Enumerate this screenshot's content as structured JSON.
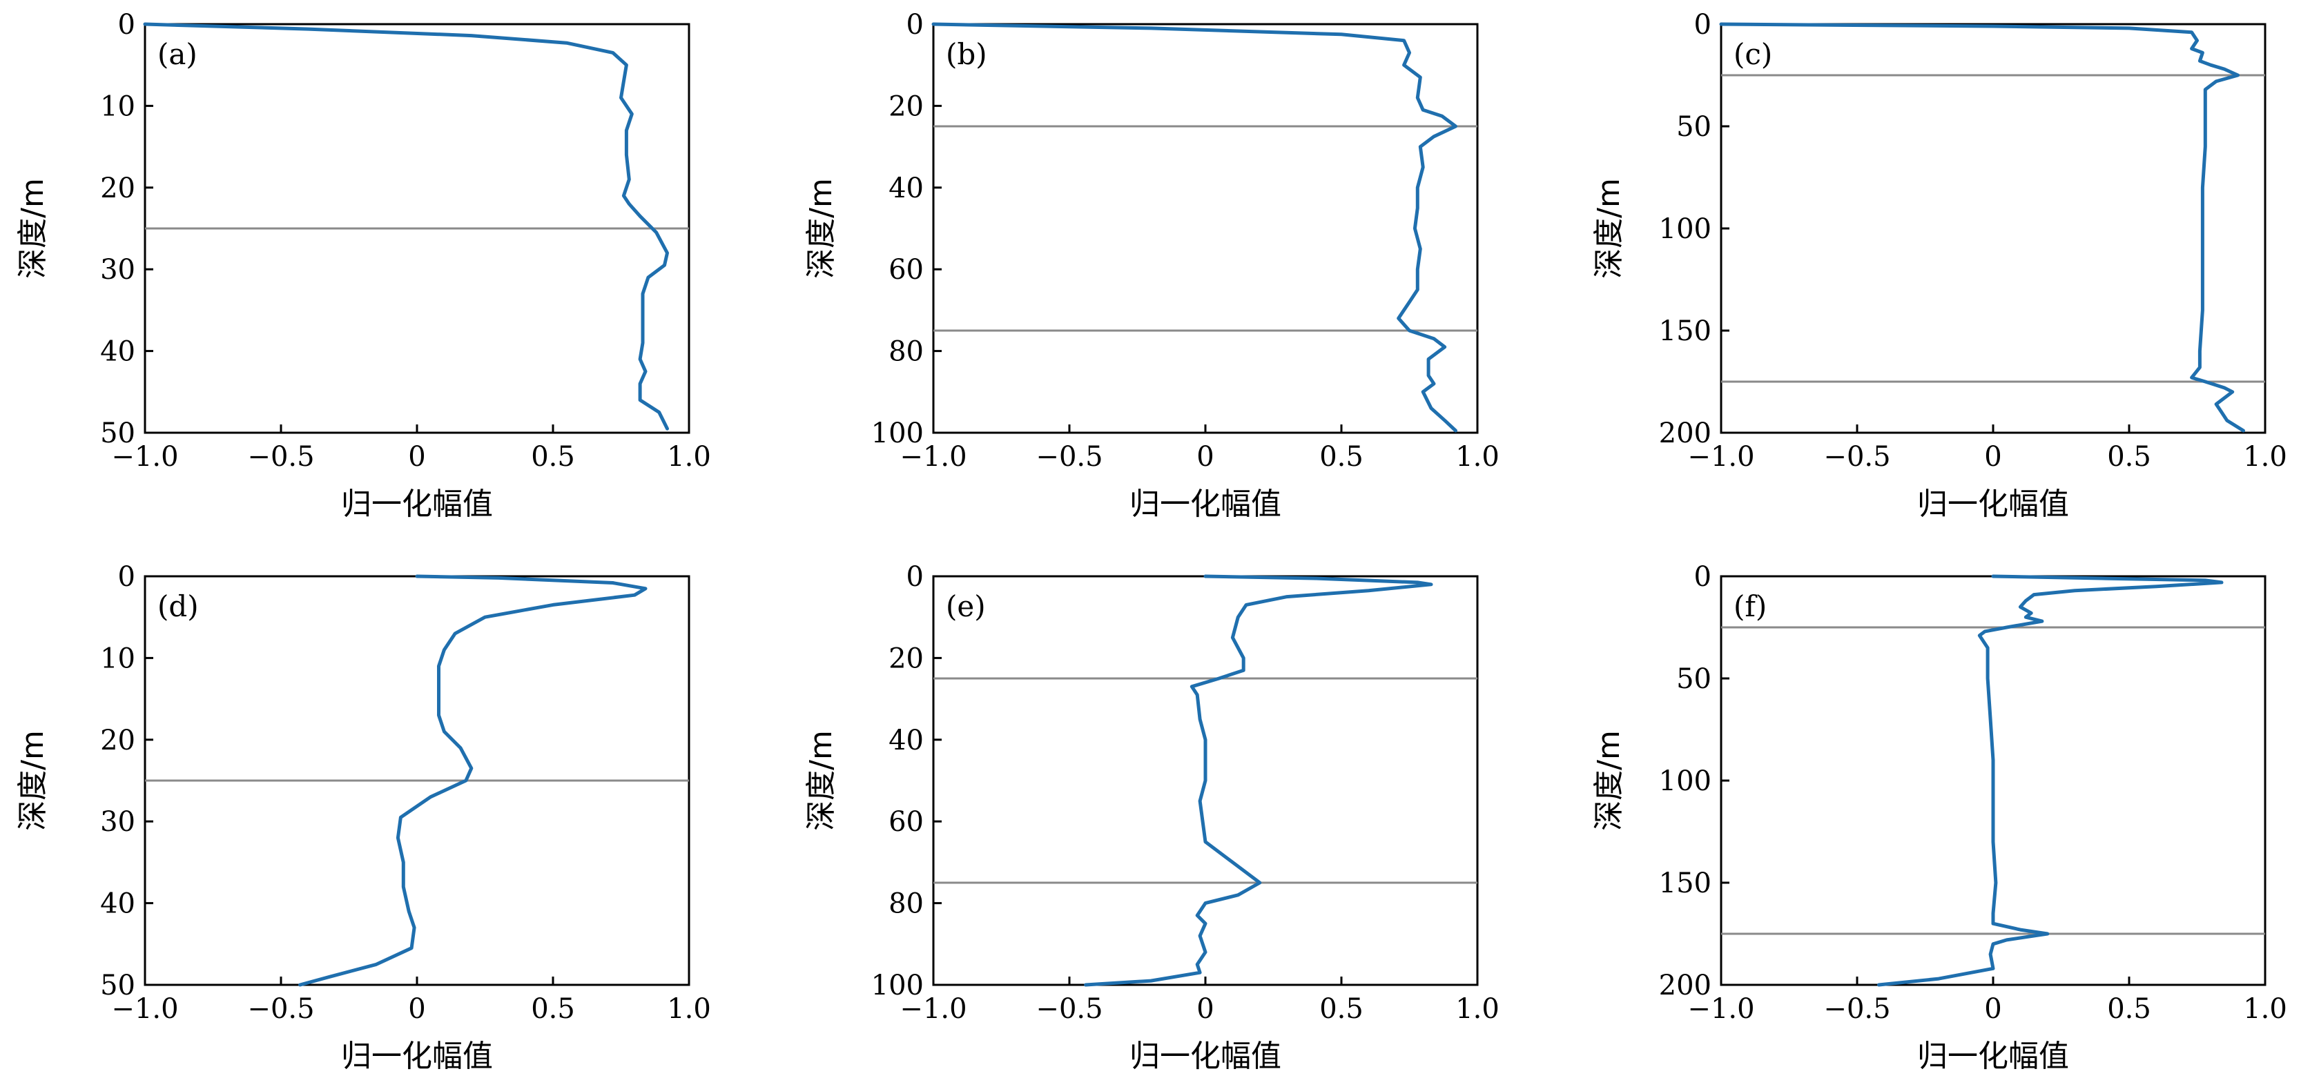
{
  "figure": {
    "colors": {
      "curve": "#1f6fae",
      "boundary_line": "#8a8a8a",
      "axes": "#000000"
    }
  },
  "chart_data": [
    {
      "panel": "(a)",
      "type": "line",
      "xlabel": "归一化幅值",
      "ylabel": "深度/m",
      "xlim": [
        -1.0,
        1.0
      ],
      "ylim": [
        0,
        50
      ],
      "y_inverted": true,
      "xticks": [
        "−1.0",
        "−0.5",
        "0",
        "0.5",
        "1.0"
      ],
      "xtick_values": [
        -1,
        -0.5,
        0,
        0.5,
        1
      ],
      "yticks": [
        "0",
        "10",
        "20",
        "30",
        "40",
        "50"
      ],
      "ytick_values": [
        0,
        10,
        20,
        30,
        40,
        50
      ],
      "hlines": [
        25
      ],
      "series": [
        {
          "x": [
            -1.0,
            -0.4,
            0.2,
            0.55,
            0.72,
            0.77,
            0.76,
            0.75,
            0.79,
            0.77,
            0.77,
            0.78,
            0.76,
            0.78,
            0.82,
            0.88,
            0.92,
            0.91,
            0.85,
            0.83,
            0.83,
            0.83,
            0.82,
            0.84,
            0.82,
            0.82,
            0.89,
            0.92
          ],
          "y": [
            0,
            0.6,
            1.4,
            2.3,
            3.5,
            5,
            7,
            9,
            11,
            13,
            16,
            19,
            21,
            22,
            23.5,
            25.5,
            28,
            29.5,
            31,
            33,
            36,
            39,
            41,
            42.5,
            44,
            46,
            47.5,
            49.5
          ]
        }
      ]
    },
    {
      "panel": "(b)",
      "type": "line",
      "xlabel": "归一化幅值",
      "ylabel": "深度/m",
      "xlim": [
        -1.0,
        1.0
      ],
      "ylim": [
        0,
        100
      ],
      "y_inverted": true,
      "xticks": [
        "−1.0",
        "−0.5",
        "0",
        "0.5",
        "1.0"
      ],
      "xtick_values": [
        -1,
        -0.5,
        0,
        0.5,
        1
      ],
      "yticks": [
        "0",
        "20",
        "40",
        "60",
        "80",
        "100"
      ],
      "ytick_values": [
        0,
        20,
        40,
        60,
        80,
        100
      ],
      "hlines": [
        25,
        75
      ],
      "series": [
        {
          "x": [
            -1.0,
            -0.2,
            0.5,
            0.73,
            0.75,
            0.73,
            0.79,
            0.78,
            0.8,
            0.87,
            0.92,
            0.84,
            0.79,
            0.8,
            0.78,
            0.78,
            0.77,
            0.79,
            0.78,
            0.78,
            0.75,
            0.71,
            0.75,
            0.84,
            0.88,
            0.82,
            0.82,
            0.84,
            0.8,
            0.83,
            0.88,
            0.92
          ],
          "y": [
            0,
            1,
            2.5,
            4,
            7,
            10,
            13,
            18,
            21,
            22.5,
            25,
            27.5,
            30,
            35,
            40,
            45,
            50,
            55,
            60,
            65,
            68,
            72,
            75,
            77,
            79,
            82,
            86,
            88,
            90,
            94,
            97,
            99.5
          ]
        }
      ]
    },
    {
      "panel": "(c)",
      "type": "line",
      "xlabel": "归一化幅值",
      "ylabel": "深度/m",
      "xlim": [
        -1.0,
        1.0
      ],
      "ylim": [
        0,
        200
      ],
      "y_inverted": true,
      "xticks": [
        "−1.0",
        "−0.5",
        "0",
        "0.5",
        "1.0"
      ],
      "xtick_values": [
        -1,
        -0.5,
        0,
        0.5,
        1
      ],
      "yticks": [
        "0",
        "50",
        "100",
        "150",
        "200"
      ],
      "ytick_values": [
        0,
        50,
        100,
        150,
        200
      ],
      "hlines": [
        25,
        175
      ],
      "series": [
        {
          "x": [
            -1.0,
            0.0,
            0.5,
            0.73,
            0.75,
            0.73,
            0.77,
            0.76,
            0.8,
            0.85,
            0.9,
            0.82,
            0.78,
            0.78,
            0.78,
            0.77,
            0.77,
            0.77,
            0.77,
            0.76,
            0.76,
            0.73,
            0.78,
            0.85,
            0.88,
            0.82,
            0.84,
            0.86,
            0.92
          ],
          "y": [
            0,
            1,
            2,
            4,
            8,
            12,
            14,
            18,
            20,
            22,
            25,
            28,
            32,
            40,
            60,
            80,
            100,
            120,
            140,
            160,
            168,
            173,
            175,
            178,
            180,
            186,
            190,
            194,
            199
          ]
        }
      ]
    },
    {
      "panel": "(d)",
      "type": "line",
      "xlabel": "归一化幅值",
      "ylabel": "深度/m",
      "xlim": [
        -1.0,
        1.0
      ],
      "ylim": [
        0,
        50
      ],
      "y_inverted": true,
      "xticks": [
        "−1.0",
        "−0.5",
        "0",
        "0.5",
        "1.0"
      ],
      "xtick_values": [
        -1,
        -0.5,
        0,
        0.5,
        1
      ],
      "yticks": [
        "0",
        "10",
        "20",
        "30",
        "40",
        "50"
      ],
      "ytick_values": [
        0,
        10,
        20,
        30,
        40,
        50
      ],
      "hlines": [
        25
      ],
      "series": [
        {
          "x": [
            0.0,
            0.3,
            0.72,
            0.84,
            0.8,
            0.5,
            0.25,
            0.14,
            0.1,
            0.08,
            0.08,
            0.08,
            0.1,
            0.16,
            0.2,
            0.18,
            0.05,
            -0.06,
            -0.07,
            -0.05,
            -0.05,
            -0.03,
            -0.01,
            -0.02,
            -0.15,
            -0.32,
            -0.43
          ],
          "y": [
            0,
            0.2,
            0.8,
            1.5,
            2.3,
            3.5,
            5,
            7,
            9,
            11,
            14,
            17,
            19,
            21,
            23.5,
            25,
            27,
            29.5,
            32,
            35,
            38,
            41,
            43,
            45.5,
            47.5,
            49,
            50
          ]
        }
      ]
    },
    {
      "panel": "(e)",
      "type": "line",
      "xlabel": "归一化幅值",
      "ylabel": "深度/m",
      "xlim": [
        -1.0,
        1.0
      ],
      "ylim": [
        0,
        100
      ],
      "y_inverted": true,
      "xticks": [
        "−1.0",
        "−0.5",
        "0",
        "0.5",
        "1.0"
      ],
      "xtick_values": [
        -1,
        -0.5,
        0,
        0.5,
        1
      ],
      "yticks": [
        "0",
        "20",
        "40",
        "60",
        "80",
        "100"
      ],
      "ytick_values": [
        0,
        20,
        40,
        60,
        80,
        100
      ],
      "hlines": [
        25,
        75
      ],
      "series": [
        {
          "x": [
            0.0,
            0.4,
            0.78,
            0.83,
            0.6,
            0.3,
            0.15,
            0.12,
            0.1,
            0.14,
            0.14,
            0.05,
            -0.05,
            -0.03,
            -0.02,
            0.0,
            0.0,
            0.0,
            -0.02,
            0.0,
            0.1,
            0.2,
            0.12,
            0.0,
            -0.03,
            0.0,
            -0.02,
            0.0,
            -0.03,
            -0.02,
            -0.2,
            -0.44
          ],
          "y": [
            0,
            0.5,
            1.5,
            2,
            3.5,
            5,
            7,
            10,
            15,
            20,
            23,
            25,
            27,
            29,
            35,
            40,
            45,
            50,
            55,
            65,
            70,
            75,
            78,
            80,
            83,
            85,
            88,
            92,
            95,
            97,
            99,
            100
          ]
        }
      ]
    },
    {
      "panel": "(f)",
      "type": "line",
      "xlabel": "归一化幅值",
      "ylabel": "深度/m",
      "xlim": [
        -1.0,
        1.0
      ],
      "ylim": [
        0,
        200
      ],
      "y_inverted": true,
      "xticks": [
        "−1.0",
        "−0.5",
        "0",
        "0.5",
        "1.0"
      ],
      "xtick_values": [
        -1,
        -0.5,
        0,
        0.5,
        1
      ],
      "yticks": [
        "0",
        "50",
        "100",
        "150",
        "200"
      ],
      "ytick_values": [
        0,
        50,
        100,
        150,
        200
      ],
      "hlines": [
        25,
        175
      ],
      "series": [
        {
          "x": [
            0.0,
            0.4,
            0.78,
            0.84,
            0.6,
            0.3,
            0.15,
            0.12,
            0.1,
            0.14,
            0.12,
            0.18,
            0.05,
            -0.03,
            -0.05,
            -0.02,
            -0.02,
            -0.01,
            0.0,
            0.0,
            0.0,
            0.01,
            0.0,
            0.0,
            0.1,
            0.2,
            0.05,
            0.0,
            -0.01,
            0.0,
            -0.2,
            -0.42
          ],
          "y": [
            0,
            1,
            2,
            3,
            5,
            7,
            9,
            12,
            15,
            18,
            20,
            22,
            25,
            27,
            29,
            35,
            50,
            70,
            90,
            110,
            130,
            150,
            165,
            170,
            173,
            175,
            178,
            180,
            185,
            192,
            197,
            200
          ]
        }
      ]
    }
  ]
}
